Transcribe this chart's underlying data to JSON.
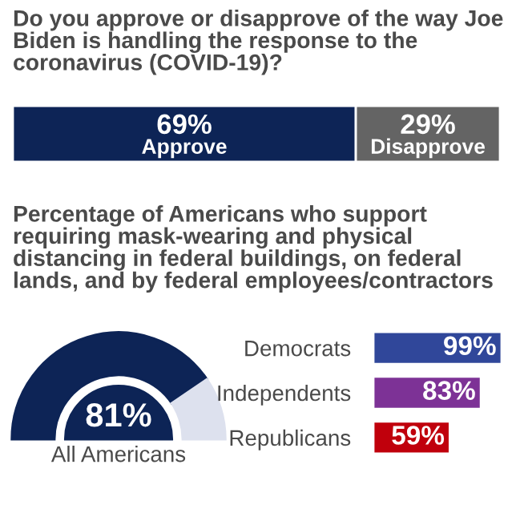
{
  "chart_data": [
    {
      "type": "bar",
      "orientation": "horizontal",
      "stacked": true,
      "title": "Do you approve or disapprove of the way Joe Biden is handling the response to the coronavirus (COVID-19)?",
      "categories": [
        null
      ],
      "series": [
        {
          "name": "Approve",
          "color": "#0d2456",
          "values": [
            69
          ],
          "value_labels": [
            "69%"
          ]
        },
        {
          "name": "Disapprove",
          "color": "#646464",
          "values": [
            29
          ],
          "value_labels": [
            "29%"
          ]
        }
      ]
    },
    {
      "type": "donut",
      "title": "Percentage of Americans who support requiring mask-wearing and physical distancing in federal buildings, on federal lands, and by federal employees/contractors",
      "categories": [
        null,
        null
      ],
      "values": [
        81,
        19
      ],
      "colors": [
        "#0d2456",
        "#dde1ee"
      ],
      "value_labels": [
        "81%",
        null
      ],
      "annotations": [
        "All Americans"
      ]
    },
    {
      "type": "bar",
      "orientation": "horizontal",
      "categories": [
        "Democrats",
        "Independents",
        "Republicans"
      ],
      "values": [
        99,
        83,
        59
      ],
      "colors": [
        "#30479a",
        "#7d3296",
        "#c0000c"
      ],
      "value_labels": [
        "99%",
        "83%",
        "59%"
      ]
    }
  ]
}
